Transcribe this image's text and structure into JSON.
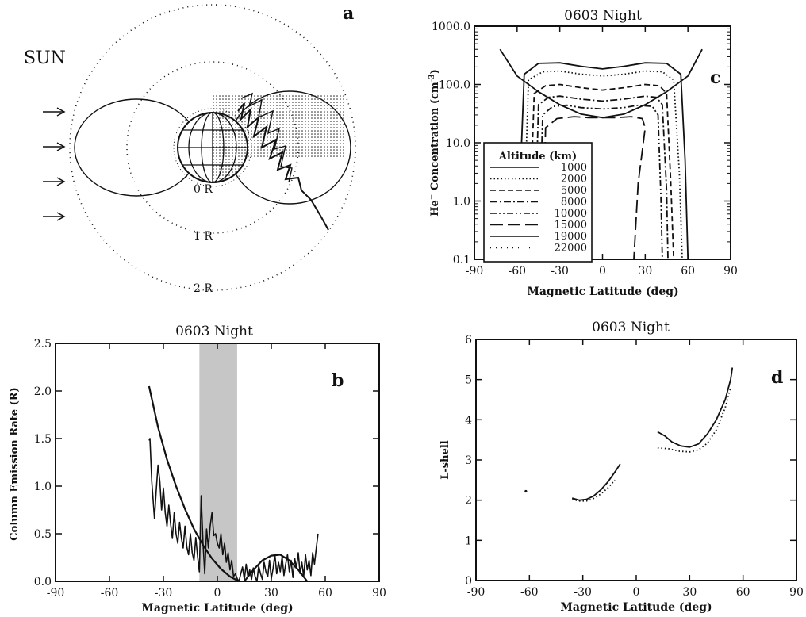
{
  "figure": {
    "panel_a": {
      "label": "a",
      "sun_label": "SUN",
      "arrow_count": 4,
      "ring_labels": [
        "0 R",
        "1 R",
        "2 R"
      ]
    }
  },
  "chart_data": [
    {
      "panel": "c",
      "type": "line",
      "title": "0603 Night",
      "xlabel": "Magnetic Latitude (deg)",
      "ylabel": "He+ Concentration (cm-3)",
      "ylabel_parts": {
        "pre": "He",
        "sup1": "+",
        "mid": " Concentration (cm",
        "sup2": "-3",
        "post": ")"
      },
      "xlim": [
        -90,
        90
      ],
      "ylim": [
        0.1,
        1000
      ],
      "y_scale": "log",
      "x_ticks": [
        -90,
        -60,
        -30,
        0,
        30,
        60,
        90
      ],
      "x_tick_labels": [
        "-90",
        "-60",
        "-30",
        "0",
        "30",
        "60",
        "90"
      ],
      "y_ticks": [
        0.1,
        1,
        10,
        100,
        1000
      ],
      "y_tick_labels": [
        "0.1",
        "1.0",
        "10.0",
        "100.0",
        "1000.0"
      ],
      "legend_title": "Altitude (km)",
      "legend_position": "bottom-left",
      "series": [
        {
          "name": "1000",
          "dash": "",
          "x": [
            -60,
            -55,
            -45,
            -30,
            -15,
            0,
            15,
            30,
            45,
            55,
            58,
            60
          ],
          "y": [
            0.1,
            150,
            230,
            235,
            205,
            185,
            205,
            235,
            230,
            150,
            5,
            0.1
          ]
        },
        {
          "name": "2000",
          "dash": "1.5,3",
          "x": [
            -56,
            -52,
            -42,
            -30,
            -15,
            0,
            15,
            30,
            42,
            50,
            54,
            56
          ],
          "y": [
            0.1,
            120,
            165,
            170,
            150,
            140,
            150,
            170,
            165,
            120,
            3,
            0.1
          ]
        },
        {
          "name": "5000",
          "dash": "7,4",
          "x": [
            -52,
            -48,
            -40,
            -30,
            -15,
            0,
            15,
            30,
            40,
            45,
            48,
            50
          ],
          "y": [
            0.1,
            70,
            95,
            100,
            88,
            80,
            88,
            100,
            95,
            70,
            2,
            0.1
          ]
        },
        {
          "name": "8000",
          "dash": "9,3,2,3",
          "x": [
            -48,
            -45,
            -38,
            -30,
            -15,
            0,
            15,
            30,
            38,
            42,
            45,
            46
          ],
          "y": [
            0.1,
            45,
            60,
            63,
            56,
            52,
            56,
            63,
            60,
            45,
            1.5,
            0.1
          ]
        },
        {
          "name": "10000",
          "dash": "8,3,2,3,2,3",
          "x": [
            -45,
            -42,
            -35,
            -25,
            -15,
            0,
            15,
            25,
            35,
            39,
            41,
            42
          ],
          "y": [
            0.1,
            30,
            42,
            44,
            40,
            38,
            40,
            44,
            42,
            30,
            1.2,
            0.1
          ]
        },
        {
          "name": "15000",
          "dash": "16,6",
          "x": [
            -42,
            -40,
            -32,
            -20,
            -10,
            0,
            10,
            20,
            28,
            30,
            25,
            22
          ],
          "y": [
            0.1,
            18,
            26,
            28,
            27,
            27,
            27,
            28,
            26,
            18,
            2,
            0.1
          ]
        },
        {
          "name": "19000",
          "dash": "",
          "x": [
            -72,
            -60,
            -45,
            -30,
            -15,
            0,
            15,
            30,
            45,
            60,
            70
          ],
          "y": [
            400,
            140,
            75,
            45,
            31,
            27,
            31,
            45,
            75,
            140,
            400
          ]
        },
        {
          "name": "22000",
          "dash": "1,6",
          "x": [
            0
          ],
          "y": [
            0.1
          ]
        }
      ],
      "annotation": "c"
    },
    {
      "panel": "b",
      "type": "line",
      "title": "0603 Night",
      "xlabel": "Magnetic Latitude (deg)",
      "ylabel": "Column Emission Rate (R)",
      "xlim": [
        -90,
        90
      ],
      "ylim": [
        0,
        2.5
      ],
      "x_ticks": [
        -90,
        -60,
        -30,
        0,
        30,
        60,
        90
      ],
      "x_tick_labels": [
        "-90",
        "-60",
        "-30",
        "0",
        "30",
        "60",
        "90"
      ],
      "y_ticks": [
        0,
        0.5,
        1.0,
        1.5,
        2.0,
        2.5
      ],
      "y_tick_labels": [
        "0.0",
        "0.5",
        "1.0",
        "1.5",
        "2.0",
        "2.5"
      ],
      "shaded_region": [
        -10,
        11
      ],
      "series": [
        {
          "name": "",
          "style": "model",
          "x": [
            -38,
            -33,
            -28,
            -23,
            -18,
            -13,
            -8,
            -3,
            2,
            7,
            12
          ],
          "y": [
            2.05,
            1.62,
            1.28,
            1.0,
            0.76,
            0.55,
            0.38,
            0.24,
            0.13,
            0.05,
            0.0
          ]
        },
        {
          "name": "",
          "style": "model",
          "x": [
            15,
            20,
            25,
            30,
            35,
            40,
            45,
            50
          ],
          "y": [
            0.0,
            0.12,
            0.22,
            0.27,
            0.28,
            0.22,
            0.12,
            0.0
          ]
        },
        {
          "name": "",
          "style": "observed",
          "x": [
            -38,
            -37.5,
            -36.5,
            -35,
            -34,
            -33,
            -32,
            -31,
            -30,
            -29,
            -28,
            -27,
            -26,
            -25,
            -24,
            -23,
            -22,
            -21,
            -20,
            -19,
            -18,
            -17,
            -16,
            -15,
            -14,
            -13,
            -12,
            -11,
            -10,
            -9,
            -8,
            -7,
            -6,
            -5,
            -4,
            -3,
            -2,
            -1,
            0,
            1,
            2,
            3,
            4,
            5,
            6,
            7,
            8,
            9,
            10,
            11,
            12,
            13,
            14,
            15,
            16,
            17,
            18,
            19,
            20,
            21,
            22,
            23,
            24,
            25,
            26,
            27,
            28,
            29,
            30,
            31,
            32,
            33,
            34,
            35,
            36,
            37,
            38,
            39,
            40,
            41,
            42,
            43,
            44,
            45,
            46,
            47,
            48,
            49,
            50,
            51,
            52,
            53,
            54,
            55,
            56
          ],
          "y": [
            1.48,
            1.5,
            1.05,
            0.66,
            0.95,
            1.22,
            1.05,
            0.75,
            0.98,
            0.72,
            0.58,
            0.8,
            0.6,
            0.45,
            0.72,
            0.5,
            0.4,
            0.62,
            0.45,
            0.35,
            0.58,
            0.36,
            0.28,
            0.5,
            0.3,
            0.22,
            0.46,
            0.26,
            0.1,
            0.9,
            0.4,
            0.08,
            0.55,
            0.35,
            0.58,
            0.72,
            0.48,
            0.5,
            0.4,
            0.35,
            0.5,
            0.28,
            0.4,
            0.2,
            0.3,
            0.12,
            0.22,
            0.05,
            0.08,
            0.03,
            0.0,
            0.08,
            0.15,
            0.02,
            0.18,
            0.05,
            0.12,
            0.02,
            0.14,
            0.05,
            0.0,
            0.16,
            0.08,
            0.02,
            0.2,
            0.1,
            0.05,
            0.22,
            0.03,
            0.14,
            0.28,
            0.08,
            0.2,
            0.1,
            0.26,
            0.06,
            0.18,
            0.28,
            0.1,
            0.22,
            0.04,
            0.24,
            0.14,
            0.3,
            0.08,
            0.2,
            0.05,
            0.28,
            0.12,
            0.22,
            0.06,
            0.3,
            0.18,
            0.35,
            0.5
          ]
        }
      ],
      "annotation": "b"
    },
    {
      "panel": "d",
      "type": "line",
      "title": "0603 Night",
      "xlabel": "Magnetic Latitude (deg)",
      "ylabel": "L-shell",
      "xlim": [
        -90,
        90
      ],
      "ylim": [
        0,
        6
      ],
      "x_ticks": [
        -90,
        -60,
        -30,
        0,
        30,
        60,
        90
      ],
      "x_tick_labels": [
        "-90",
        "-60",
        "-30",
        "0",
        "30",
        "60",
        "90"
      ],
      "y_ticks": [
        0,
        1,
        2,
        3,
        4,
        5,
        6
      ],
      "y_tick_labels": [
        "0",
        "1",
        "2",
        "3",
        "4",
        "5",
        "6"
      ],
      "series": [
        {
          "name": "",
          "style": "solid",
          "x": [
            -36,
            -32,
            -28,
            -24,
            -20,
            -16,
            -12,
            -9
          ],
          "y": [
            2.05,
            2.0,
            2.02,
            2.1,
            2.25,
            2.45,
            2.7,
            2.9
          ]
        },
        {
          "name": "",
          "style": "dotted",
          "x": [
            -36,
            -32,
            -28,
            -24,
            -20,
            -16,
            -12
          ],
          "y": [
            2.02,
            1.98,
            1.98,
            2.04,
            2.15,
            2.3,
            2.5
          ]
        },
        {
          "name": "",
          "style": "solid",
          "x": [
            12,
            16,
            20,
            25,
            30,
            35,
            40,
            45,
            50,
            53,
            54
          ],
          "y": [
            3.7,
            3.6,
            3.45,
            3.35,
            3.32,
            3.4,
            3.65,
            4.0,
            4.5,
            5.0,
            5.3
          ]
        },
        {
          "name": "",
          "style": "dotted",
          "x": [
            12,
            18,
            24,
            30,
            35,
            40,
            45,
            50,
            53
          ],
          "y": [
            3.3,
            3.28,
            3.22,
            3.2,
            3.25,
            3.42,
            3.75,
            4.3,
            4.8
          ]
        },
        {
          "name": "",
          "style": "point",
          "x": [
            -62
          ],
          "y": [
            2.22
          ]
        }
      ],
      "annotation": "d"
    }
  ]
}
